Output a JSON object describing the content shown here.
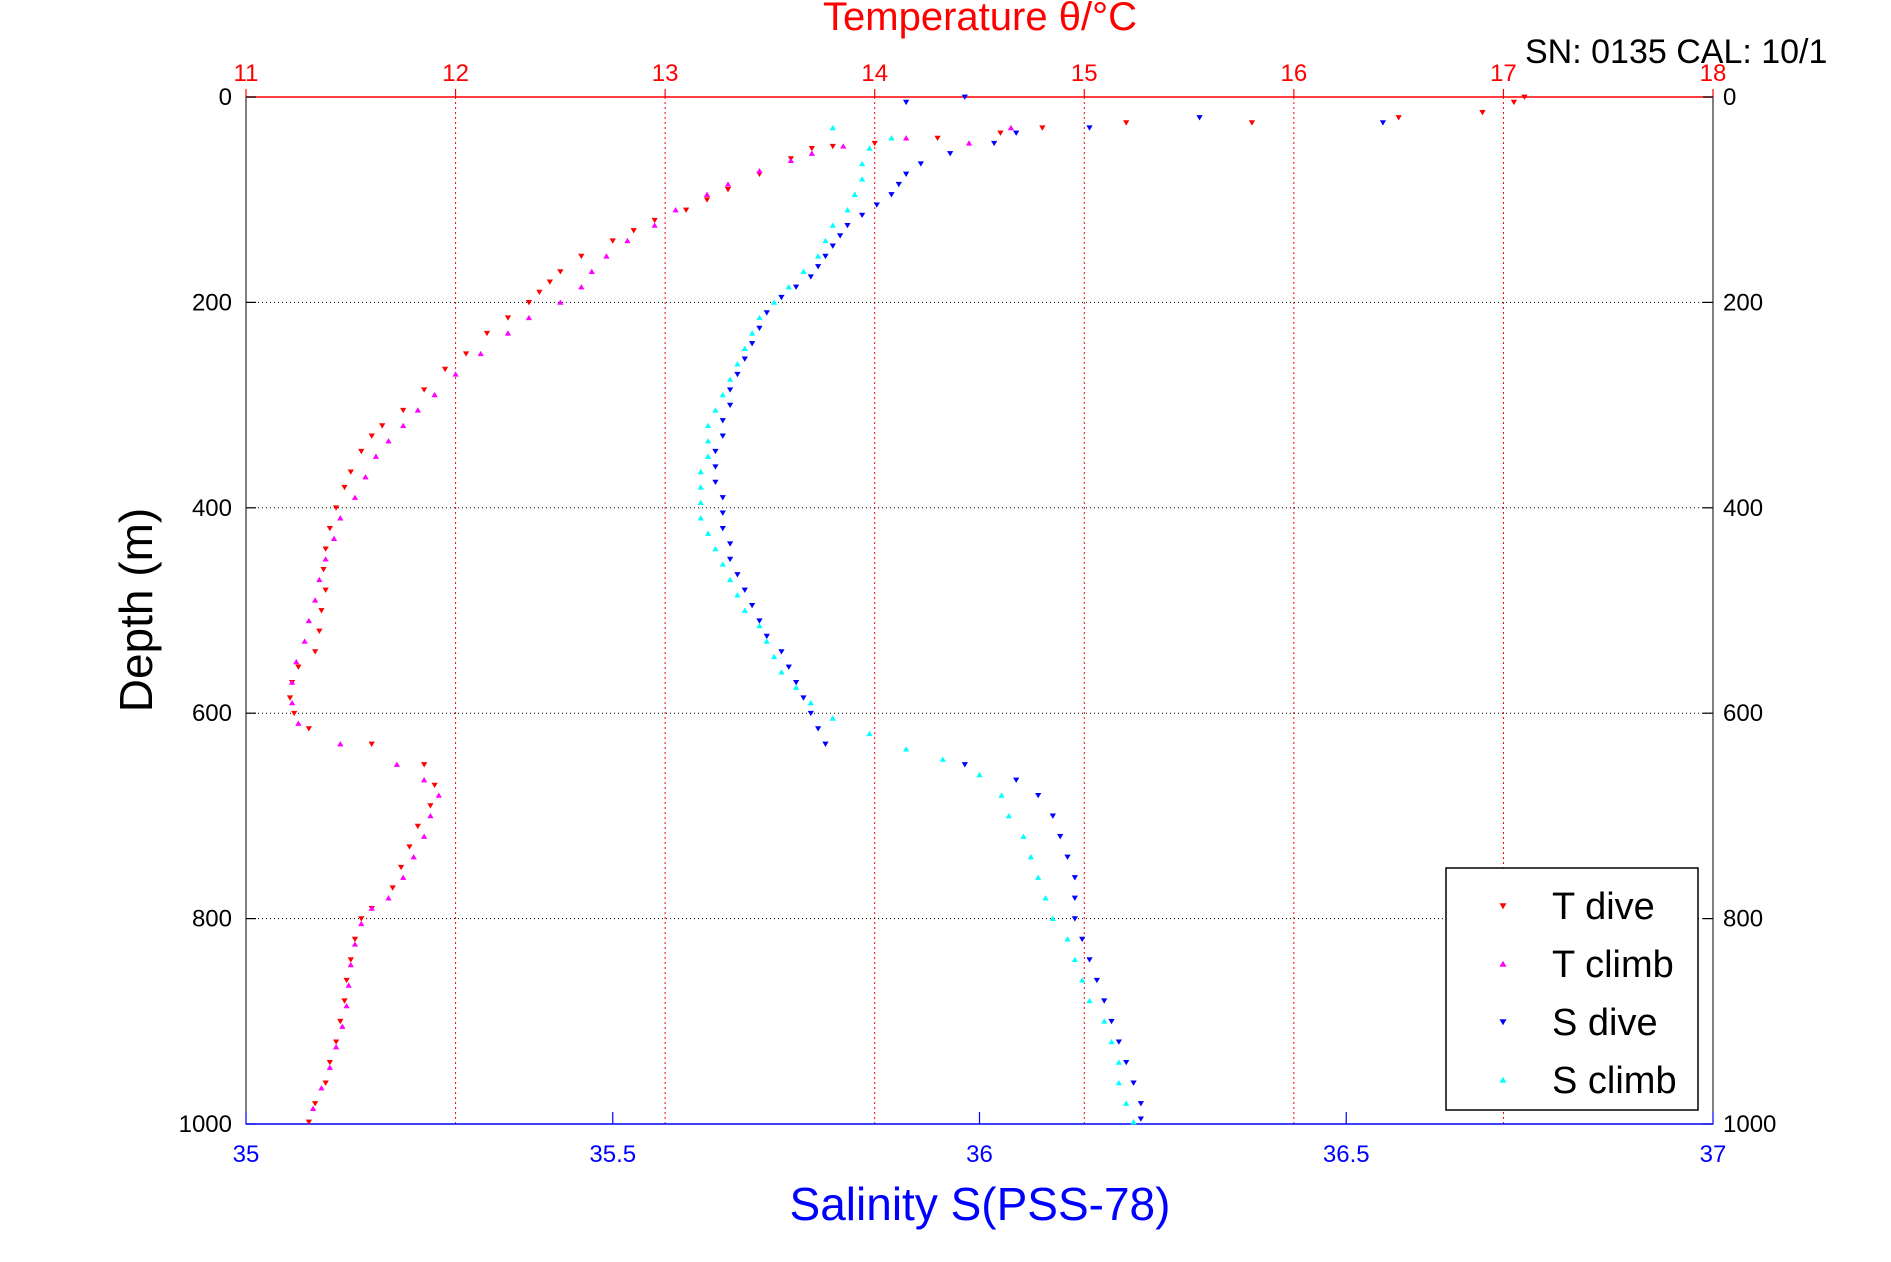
{
  "chart_data": {
    "type": "scatter",
    "title_top": "Temperature θ/°C",
    "title_top_color": "#ff0000",
    "serial_note": "SN: 0135  CAL: 10/1",
    "xlabel_bottom": "Salinity S(PSS-78)",
    "xlabel_bottom_color": "#0000ff",
    "ylabel": "Depth (m)",
    "y_axis": {
      "min": 0,
      "max": 1000,
      "reversed": true,
      "ticks": [
        0,
        200,
        400,
        600,
        800,
        1000
      ]
    },
    "x_top_axis": {
      "quantity": "Temperature",
      "min": 11,
      "max": 18,
      "ticks": [
        11,
        12,
        13,
        14,
        15,
        16,
        17,
        18
      ],
      "color": "#ff0000"
    },
    "x_bottom_axis": {
      "quantity": "Salinity",
      "min": 35,
      "max": 37,
      "ticks": [
        35,
        35.5,
        36,
        36.5,
        37
      ],
      "tick_labels": [
        "35",
        "35.5",
        "36",
        "36.5",
        "37"
      ],
      "color": "#0000ff"
    },
    "grid": {
      "vertical_top_ticks": true,
      "horizontal_depth_ticks": true
    },
    "legend_position": "bottom-right",
    "series": [
      {
        "name": "T dive",
        "axis": "temperature",
        "marker": "triangle-down",
        "color": "#ff0000",
        "points": [
          [
            17.1,
            0
          ],
          [
            17.05,
            5
          ],
          [
            16.9,
            15
          ],
          [
            16.5,
            20
          ],
          [
            15.8,
            25
          ],
          [
            15.2,
            25
          ],
          [
            14.8,
            30
          ],
          [
            14.6,
            35
          ],
          [
            14.3,
            40
          ],
          [
            14.0,
            45
          ],
          [
            13.8,
            48
          ],
          [
            13.7,
            50
          ],
          [
            13.6,
            60
          ],
          [
            13.45,
            75
          ],
          [
            13.3,
            90
          ],
          [
            13.2,
            100
          ],
          [
            13.1,
            110
          ],
          [
            12.95,
            120
          ],
          [
            12.85,
            130
          ],
          [
            12.75,
            140
          ],
          [
            12.6,
            155
          ],
          [
            12.5,
            170
          ],
          [
            12.45,
            180
          ],
          [
            12.4,
            190
          ],
          [
            12.35,
            200
          ],
          [
            12.25,
            215
          ],
          [
            12.15,
            230
          ],
          [
            12.05,
            250
          ],
          [
            11.95,
            265
          ],
          [
            11.85,
            285
          ],
          [
            11.75,
            305
          ],
          [
            11.65,
            320
          ],
          [
            11.6,
            330
          ],
          [
            11.55,
            345
          ],
          [
            11.5,
            365
          ],
          [
            11.47,
            380
          ],
          [
            11.43,
            400
          ],
          [
            11.4,
            420
          ],
          [
            11.38,
            440
          ],
          [
            11.37,
            460
          ],
          [
            11.38,
            480
          ],
          [
            11.36,
            500
          ],
          [
            11.35,
            520
          ],
          [
            11.33,
            540
          ],
          [
            11.25,
            555
          ],
          [
            11.22,
            570
          ],
          [
            11.21,
            585
          ],
          [
            11.23,
            600
          ],
          [
            11.3,
            615
          ],
          [
            11.6,
            630
          ],
          [
            11.85,
            650
          ],
          [
            11.9,
            670
          ],
          [
            11.88,
            690
          ],
          [
            11.82,
            710
          ],
          [
            11.78,
            730
          ],
          [
            11.74,
            750
          ],
          [
            11.7,
            770
          ],
          [
            11.6,
            790
          ],
          [
            11.55,
            800
          ],
          [
            11.52,
            820
          ],
          [
            11.5,
            840
          ],
          [
            11.48,
            860
          ],
          [
            11.47,
            880
          ],
          [
            11.45,
            900
          ],
          [
            11.43,
            920
          ],
          [
            11.4,
            940
          ],
          [
            11.38,
            960
          ],
          [
            11.33,
            980
          ],
          [
            11.3,
            998
          ]
        ]
      },
      {
        "name": "T climb",
        "axis": "temperature",
        "marker": "triangle-up",
        "color": "#ff00ff",
        "points": [
          [
            14.65,
            30
          ],
          [
            14.45,
            45
          ],
          [
            14.15,
            40
          ],
          [
            13.85,
            48
          ],
          [
            13.7,
            55
          ],
          [
            13.6,
            62
          ],
          [
            13.45,
            72
          ],
          [
            13.3,
            85
          ],
          [
            13.2,
            95
          ],
          [
            13.05,
            110
          ],
          [
            12.95,
            125
          ],
          [
            12.82,
            140
          ],
          [
            12.72,
            155
          ],
          [
            12.65,
            170
          ],
          [
            12.6,
            185
          ],
          [
            12.5,
            200
          ],
          [
            12.35,
            215
          ],
          [
            12.25,
            230
          ],
          [
            12.12,
            250
          ],
          [
            12.0,
            270
          ],
          [
            11.9,
            290
          ],
          [
            11.82,
            305
          ],
          [
            11.75,
            320
          ],
          [
            11.68,
            335
          ],
          [
            11.62,
            350
          ],
          [
            11.57,
            370
          ],
          [
            11.52,
            390
          ],
          [
            11.45,
            410
          ],
          [
            11.42,
            430
          ],
          [
            11.38,
            450
          ],
          [
            11.35,
            470
          ],
          [
            11.33,
            490
          ],
          [
            11.3,
            510
          ],
          [
            11.28,
            530
          ],
          [
            11.24,
            550
          ],
          [
            11.22,
            570
          ],
          [
            11.22,
            590
          ],
          [
            11.25,
            610
          ],
          [
            11.45,
            630
          ],
          [
            11.72,
            650
          ],
          [
            11.85,
            665
          ],
          [
            11.92,
            680
          ],
          [
            11.88,
            700
          ],
          [
            11.85,
            720
          ],
          [
            11.8,
            740
          ],
          [
            11.75,
            760
          ],
          [
            11.68,
            780
          ],
          [
            11.6,
            790
          ],
          [
            11.55,
            805
          ],
          [
            11.52,
            825
          ],
          [
            11.5,
            845
          ],
          [
            11.49,
            865
          ],
          [
            11.48,
            885
          ],
          [
            11.46,
            905
          ],
          [
            11.43,
            925
          ],
          [
            11.4,
            945
          ],
          [
            11.36,
            965
          ],
          [
            11.32,
            985
          ]
        ]
      },
      {
        "name": "S dive",
        "axis": "salinity",
        "marker": "triangle-down",
        "color": "#0000ff",
        "points": [
          [
            35.9,
            5
          ],
          [
            35.98,
            0
          ],
          [
            36.3,
            20
          ],
          [
            36.55,
            25
          ],
          [
            36.15,
            30
          ],
          [
            36.05,
            35
          ],
          [
            36.02,
            45
          ],
          [
            35.96,
            55
          ],
          [
            35.92,
            65
          ],
          [
            35.9,
            75
          ],
          [
            35.89,
            85
          ],
          [
            35.88,
            95
          ],
          [
            35.86,
            105
          ],
          [
            35.84,
            115
          ],
          [
            35.82,
            125
          ],
          [
            35.81,
            135
          ],
          [
            35.8,
            145
          ],
          [
            35.79,
            155
          ],
          [
            35.78,
            165
          ],
          [
            35.77,
            175
          ],
          [
            35.75,
            185
          ],
          [
            35.73,
            195
          ],
          [
            35.71,
            210
          ],
          [
            35.7,
            225
          ],
          [
            35.69,
            240
          ],
          [
            35.68,
            255
          ],
          [
            35.67,
            270
          ],
          [
            35.66,
            285
          ],
          [
            35.66,
            300
          ],
          [
            35.65,
            315
          ],
          [
            35.65,
            330
          ],
          [
            35.64,
            345
          ],
          [
            35.64,
            360
          ],
          [
            35.64,
            375
          ],
          [
            35.65,
            390
          ],
          [
            35.65,
            405
          ],
          [
            35.65,
            420
          ],
          [
            35.66,
            435
          ],
          [
            35.66,
            450
          ],
          [
            35.67,
            465
          ],
          [
            35.68,
            480
          ],
          [
            35.69,
            495
          ],
          [
            35.7,
            510
          ],
          [
            35.71,
            525
          ],
          [
            35.73,
            540
          ],
          [
            35.74,
            555
          ],
          [
            35.75,
            570
          ],
          [
            35.76,
            585
          ],
          [
            35.77,
            600
          ],
          [
            35.78,
            615
          ],
          [
            35.79,
            630
          ],
          [
            35.98,
            650
          ],
          [
            36.05,
            665
          ],
          [
            36.08,
            680
          ],
          [
            36.1,
            700
          ],
          [
            36.11,
            720
          ],
          [
            36.12,
            740
          ],
          [
            36.13,
            760
          ],
          [
            36.13,
            780
          ],
          [
            36.13,
            800
          ],
          [
            36.14,
            820
          ],
          [
            36.15,
            840
          ],
          [
            36.16,
            860
          ],
          [
            36.17,
            880
          ],
          [
            36.18,
            900
          ],
          [
            36.19,
            920
          ],
          [
            36.2,
            940
          ],
          [
            36.21,
            960
          ],
          [
            36.22,
            980
          ],
          [
            36.22,
            995
          ]
        ]
      },
      {
        "name": "S climb",
        "axis": "salinity",
        "marker": "triangle-up",
        "color": "#00ffff",
        "points": [
          [
            35.8,
            30
          ],
          [
            35.88,
            40
          ],
          [
            35.85,
            50
          ],
          [
            35.84,
            65
          ],
          [
            35.84,
            80
          ],
          [
            35.83,
            95
          ],
          [
            35.82,
            110
          ],
          [
            35.8,
            125
          ],
          [
            35.79,
            140
          ],
          [
            35.78,
            155
          ],
          [
            35.76,
            170
          ],
          [
            35.74,
            185
          ],
          [
            35.72,
            200
          ],
          [
            35.7,
            215
          ],
          [
            35.69,
            230
          ],
          [
            35.68,
            245
          ],
          [
            35.67,
            260
          ],
          [
            35.66,
            275
          ],
          [
            35.65,
            290
          ],
          [
            35.64,
            305
          ],
          [
            35.63,
            320
          ],
          [
            35.63,
            335
          ],
          [
            35.63,
            350
          ],
          [
            35.62,
            365
          ],
          [
            35.62,
            380
          ],
          [
            35.62,
            395
          ],
          [
            35.62,
            410
          ],
          [
            35.63,
            425
          ],
          [
            35.64,
            440
          ],
          [
            35.65,
            455
          ],
          [
            35.66,
            470
          ],
          [
            35.67,
            485
          ],
          [
            35.68,
            500
          ],
          [
            35.7,
            515
          ],
          [
            35.71,
            530
          ],
          [
            35.72,
            545
          ],
          [
            35.73,
            560
          ],
          [
            35.75,
            575
          ],
          [
            35.77,
            590
          ],
          [
            35.8,
            605
          ],
          [
            35.85,
            620
          ],
          [
            35.9,
            635
          ],
          [
            35.95,
            645
          ],
          [
            36.0,
            660
          ],
          [
            36.03,
            680
          ],
          [
            36.04,
            700
          ],
          [
            36.06,
            720
          ],
          [
            36.07,
            740
          ],
          [
            36.08,
            760
          ],
          [
            36.09,
            780
          ],
          [
            36.1,
            800
          ],
          [
            36.12,
            820
          ],
          [
            36.13,
            840
          ],
          [
            36.14,
            860
          ],
          [
            36.15,
            880
          ],
          [
            36.17,
            900
          ],
          [
            36.18,
            920
          ],
          [
            36.19,
            940
          ],
          [
            36.19,
            960
          ],
          [
            36.2,
            980
          ],
          [
            36.21,
            998
          ]
        ]
      }
    ]
  }
}
